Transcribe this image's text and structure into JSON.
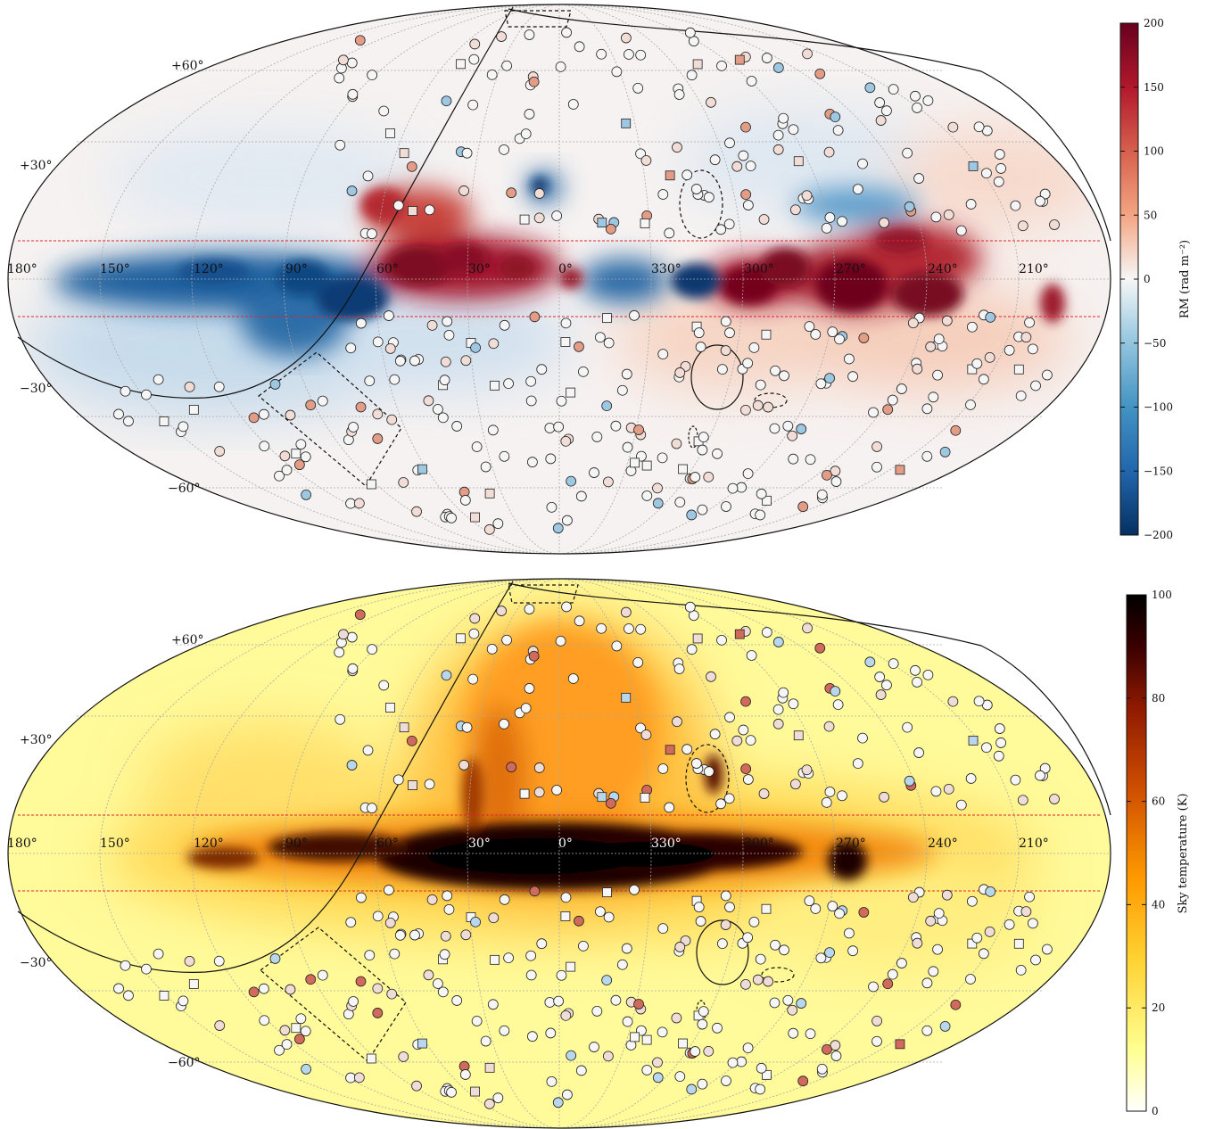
{
  "chart_data": [
    {
      "type": "heatmap",
      "projection": "mollweide",
      "colormap": "RdBu_r (blue negative, red positive)",
      "longitude_labels": [
        "180°",
        "150°",
        "120°",
        "90°",
        "60°",
        "30°",
        "0°",
        "330°",
        "300°",
        "270°",
        "240°",
        "210°"
      ],
      "latitude_labels": [
        "+60°",
        "+30°",
        "−30°",
        "−60°"
      ],
      "colorbar": {
        "label": "RM (rad m⁻²)",
        "ticks": [
          "200",
          "150",
          "100",
          "50",
          "0",
          "−50",
          "−100",
          "−150",
          "−200"
        ],
        "range": [
          -200,
          200
        ],
        "colors": [
          "#053061",
          "#2166ac",
          "#4393c3",
          "#92c5de",
          "#f7f7f7",
          "#f4a582",
          "#d6604d",
          "#b2182b",
          "#67001f"
        ]
      },
      "markers": {
        "symbols": [
          "circle",
          "square"
        ],
        "edge_color": "#222222"
      }
    },
    {
      "type": "heatmap",
      "projection": "mollweide",
      "colormap": "afmhot_r",
      "longitude_labels": [
        "180°",
        "150°",
        "120°",
        "90°",
        "60°",
        "30°",
        "0°",
        "330°",
        "300°",
        "270°",
        "240°",
        "210°"
      ],
      "latitude_labels": [
        "+60°",
        "+30°",
        "−30°",
        "−60°"
      ],
      "colorbar": {
        "label": "Sky temperature (K)",
        "ticks": [
          "100",
          "80",
          "60",
          "40",
          "20",
          "0"
        ],
        "range": [
          0,
          100
        ],
        "colors": [
          "#ffffff",
          "#ffff70",
          "#ffd030",
          "#ff9a00",
          "#d05000",
          "#901a00",
          "#3a0000",
          "#000000"
        ]
      },
      "markers": {
        "symbols": [
          "circle",
          "square"
        ],
        "edge_color": "#222222"
      }
    }
  ]
}
